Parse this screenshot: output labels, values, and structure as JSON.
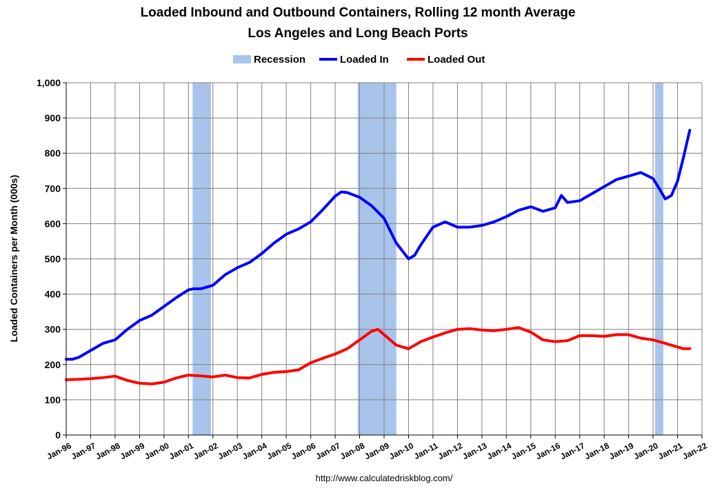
{
  "chart_data": {
    "type": "line",
    "title": "Loaded Inbound and Outbound Containers, Rolling 12 month Average",
    "subtitle": "Los Angeles and Long Beach Ports",
    "ylabel": "Loaded Containers per Month (000s)",
    "xlabel": "",
    "source": "http://www.calculatedriskblog.com/",
    "ylim": [
      0,
      1000
    ],
    "xlim": [
      1996.0,
      2022.0
    ],
    "y_ticks": [
      "0",
      "100",
      "200",
      "300",
      "400",
      "500",
      "600",
      "700",
      "800",
      "900",
      "1,000"
    ],
    "y_tick_values": [
      0,
      100,
      200,
      300,
      400,
      500,
      600,
      700,
      800,
      900,
      1000
    ],
    "x_ticks": [
      "Jan-96",
      "Jan-97",
      "Jan-98",
      "Jan-99",
      "Jan-00",
      "Jan-01",
      "Jan-02",
      "Jan-03",
      "Jan-04",
      "Jan-05",
      "Jan-06",
      "Jan-07",
      "Jan-08",
      "Jan-09",
      "Jan-10",
      "Jan-11",
      "Jan-12",
      "Jan-13",
      "Jan-14",
      "Jan-15",
      "Jan-16",
      "Jan-17",
      "Jan-18",
      "Jan-19",
      "Jan-20",
      "Jan-21",
      "Jan-22"
    ],
    "x_tick_values": [
      1996,
      1997,
      1998,
      1999,
      2000,
      2001,
      2002,
      2003,
      2004,
      2005,
      2006,
      2007,
      2008,
      2009,
      2010,
      2011,
      2012,
      2013,
      2014,
      2015,
      2016,
      2017,
      2018,
      2019,
      2020,
      2021,
      2022
    ],
    "grid": true,
    "legend_position": "top-center",
    "legend": [
      {
        "name": "Recession",
        "color": "#a9c4ea",
        "kind": "box"
      },
      {
        "name": "Loaded In",
        "color": "#0000ff",
        "kind": "line"
      },
      {
        "name": "Loaded Out",
        "color": "#ff0000",
        "kind": "line"
      }
    ],
    "recessions": [
      {
        "start": 2001.17,
        "end": 2001.92
      },
      {
        "start": 2007.92,
        "end": 2009.5
      },
      {
        "start": 2020.08,
        "end": 2020.42
      }
    ],
    "series": [
      {
        "name": "Loaded In",
        "color": "#0000ff",
        "x": [
          1996.0,
          1996.25,
          1996.5,
          1997.0,
          1997.5,
          1998.0,
          1998.25,
          1998.5,
          1999.0,
          1999.5,
          2000.0,
          2000.5,
          2001.0,
          2001.2,
          2001.5,
          2002.0,
          2002.25,
          2002.5,
          2003.0,
          2003.5,
          2004.0,
          2004.5,
          2005.0,
          2005.5,
          2006.0,
          2006.5,
          2007.0,
          2007.25,
          2007.5,
          2008.0,
          2008.5,
          2009.0,
          2009.5,
          2010.0,
          2010.25,
          2010.5,
          2011.0,
          2011.5,
          2012.0,
          2012.5,
          2013.0,
          2013.5,
          2014.0,
          2014.5,
          2015.0,
          2015.5,
          2016.0,
          2016.25,
          2016.5,
          2017.0,
          2017.5,
          2018.0,
          2018.5,
          2019.0,
          2019.5,
          2020.0,
          2020.25,
          2020.5,
          2020.75,
          2021.0,
          2021.25,
          2021.5
        ],
        "values": [
          215,
          215,
          220,
          240,
          260,
          270,
          285,
          300,
          325,
          340,
          365,
          390,
          412,
          415,
          415,
          425,
          440,
          455,
          475,
          490,
          515,
          545,
          570,
          585,
          605,
          640,
          678,
          690,
          688,
          675,
          650,
          615,
          545,
          500,
          510,
          540,
          590,
          605,
          590,
          590,
          595,
          605,
          620,
          638,
          648,
          635,
          645,
          680,
          660,
          665,
          685,
          705,
          725,
          735,
          745,
          728,
          700,
          670,
          680,
          720,
          790,
          865
        ]
      },
      {
        "name": "Loaded Out",
        "color": "#ff0000",
        "x": [
          1996.0,
          1996.5,
          1997.0,
          1997.5,
          1998.0,
          1998.5,
          1999.0,
          1999.5,
          2000.0,
          2000.5,
          2001.0,
          2001.5,
          2002.0,
          2002.5,
          2003.0,
          2003.5,
          2004.0,
          2004.5,
          2005.0,
          2005.5,
          2006.0,
          2006.5,
          2007.0,
          2007.5,
          2008.0,
          2008.5,
          2008.75,
          2009.0,
          2009.5,
          2010.0,
          2010.5,
          2011.0,
          2011.5,
          2012.0,
          2012.5,
          2013.0,
          2013.5,
          2014.0,
          2014.5,
          2015.0,
          2015.5,
          2016.0,
          2016.5,
          2017.0,
          2017.5,
          2018.0,
          2018.5,
          2019.0,
          2019.5,
          2020.0,
          2020.5,
          2021.0,
          2021.25,
          2021.5
        ],
        "values": [
          157,
          158,
          160,
          163,
          167,
          155,
          147,
          145,
          150,
          162,
          170,
          168,
          165,
          170,
          163,
          162,
          172,
          178,
          180,
          185,
          205,
          218,
          230,
          245,
          270,
          295,
          300,
          285,
          255,
          245,
          265,
          278,
          290,
          300,
          302,
          298,
          296,
          300,
          305,
          292,
          270,
          265,
          268,
          282,
          282,
          280,
          285,
          285,
          275,
          270,
          260,
          250,
          245,
          245
        ]
      }
    ]
  }
}
